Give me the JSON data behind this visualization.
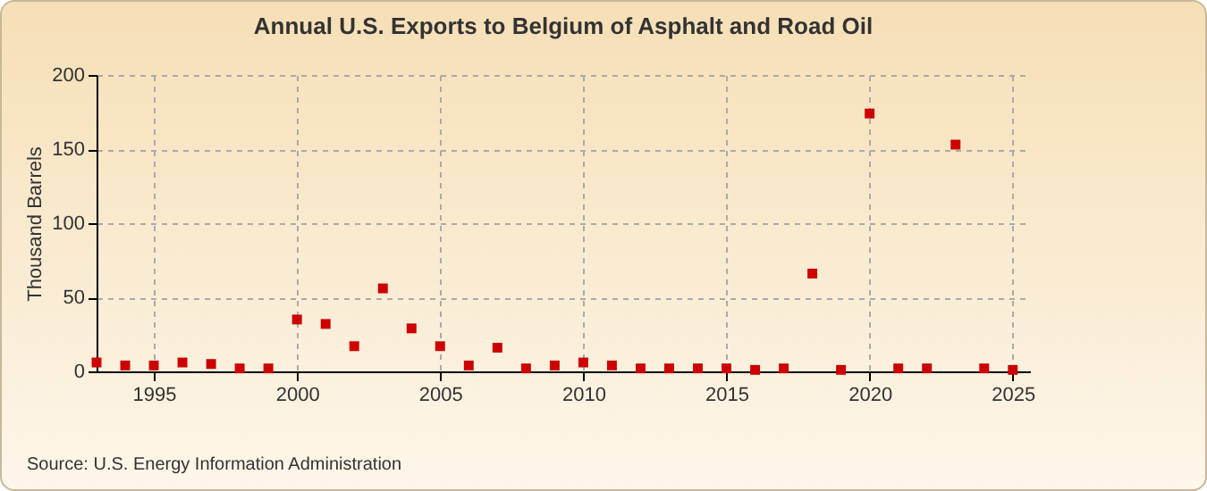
{
  "chart_data": {
    "type": "scatter",
    "title": "Annual U.S. Exports to Belgium of Asphalt and Road Oil",
    "ylabel": "Thousand Barrels",
    "annotations": [
      "Source: U.S. Energy Information Administration"
    ],
    "x": [
      1993,
      1994,
      1995,
      1996,
      1997,
      1998,
      1999,
      2000,
      2001,
      2002,
      2003,
      2004,
      2005,
      2006,
      2007,
      2008,
      2009,
      2010,
      2011,
      2012,
      2013,
      2014,
      2015,
      2016,
      2017,
      2018,
      2019,
      2020,
      2021,
      2022,
      2023,
      2024,
      2025
    ],
    "series": [
      {
        "color": "#cc0000",
        "values": [
          6,
          4,
          4,
          6,
          5,
          2,
          2,
          35,
          32,
          17,
          56,
          29,
          17,
          4,
          16,
          2,
          4,
          6,
          4,
          2,
          2,
          2,
          2,
          1,
          2,
          66,
          1,
          174,
          2,
          2,
          153,
          2,
          1
        ]
      }
    ],
    "xlim": [
      1993,
      2025.6
    ],
    "xticks": [
      1995,
      2000,
      2005,
      2010,
      2015,
      2020,
      2025
    ],
    "ylim": [
      0,
      200
    ],
    "yticks": [
      0,
      50,
      100,
      150,
      200
    ],
    "grid": true,
    "marker": "square"
  }
}
